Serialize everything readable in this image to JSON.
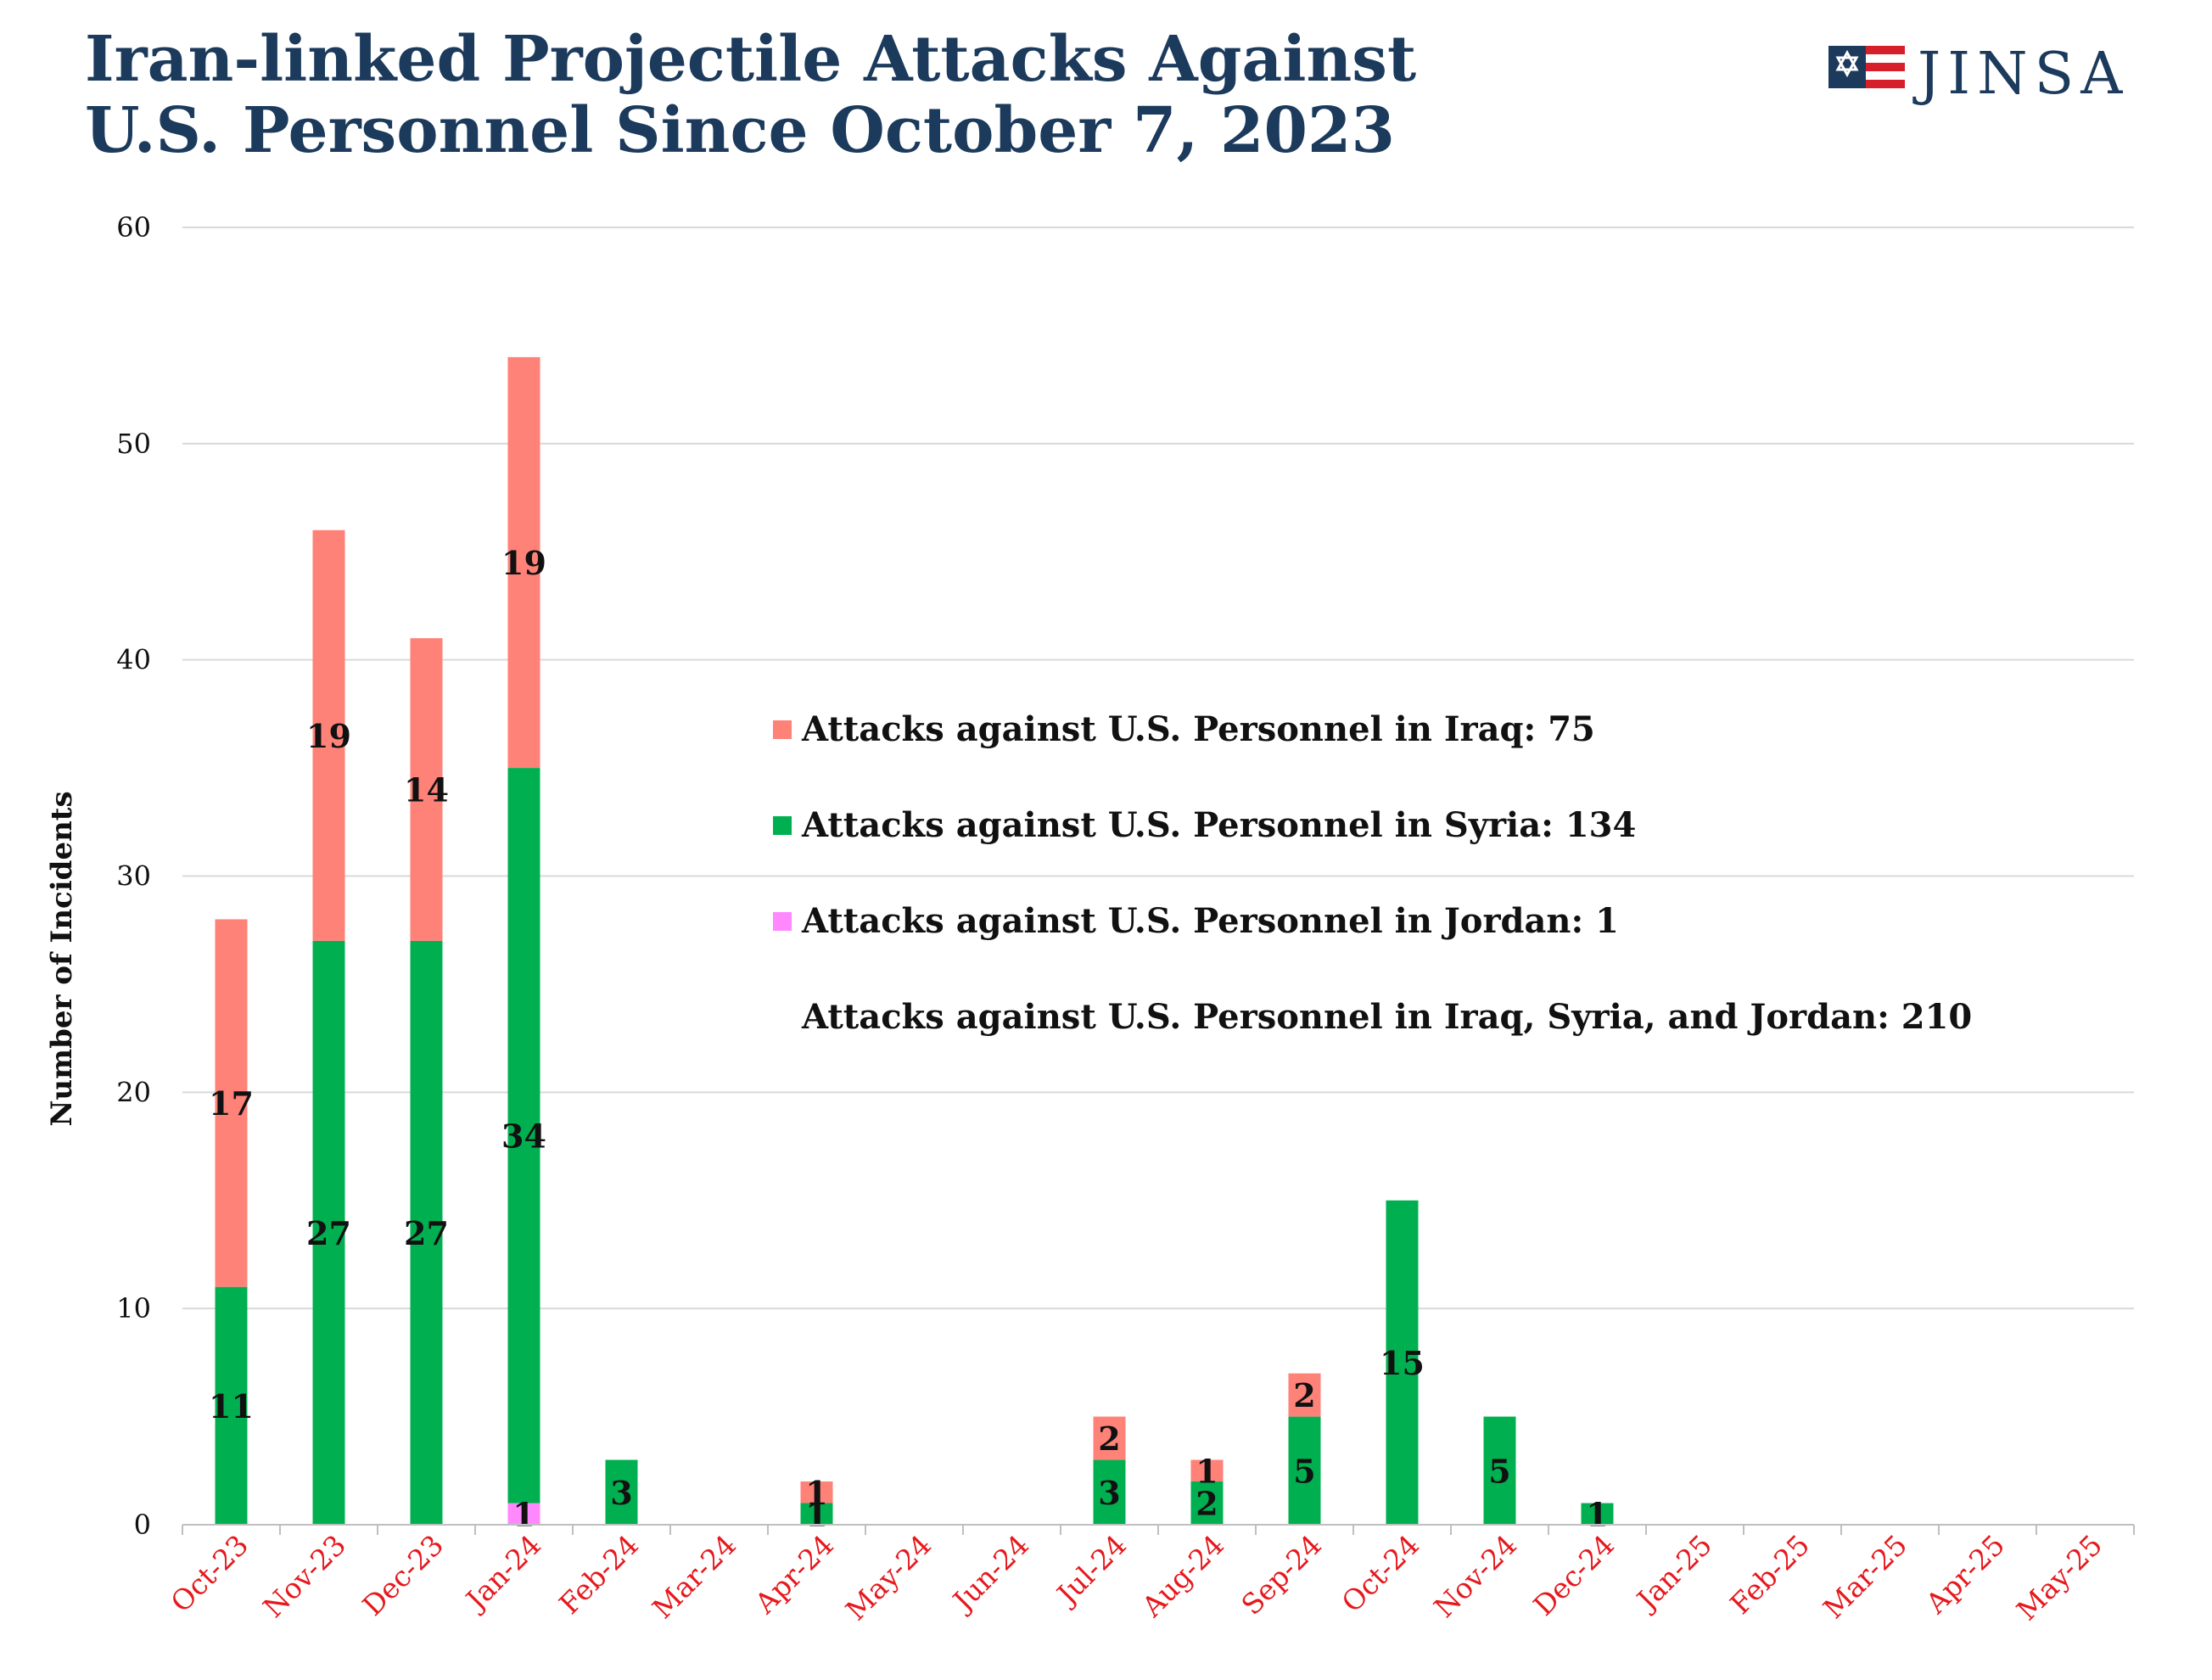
{
  "header": {
    "title_line1": "Iran-linked Projectile Attacks Against",
    "title_line2": "U.S. Personnel Since October 7, 2023",
    "logo_text": "JINSA"
  },
  "colors": {
    "title": "#1b3a5c",
    "iraq": "#fe8278",
    "syria": "#00b050",
    "jordan": "#ff88ff",
    "x_tick": "#e6191e",
    "grid": "#d9d9d9"
  },
  "chart_data": {
    "type": "bar",
    "stacked": true,
    "title": "Iran-linked Projectile Attacks Against U.S. Personnel Since October 7, 2023",
    "xlabel": "",
    "ylabel": "Number of Incidents",
    "ylim": [
      0,
      60
    ],
    "yticks": [
      0,
      10,
      20,
      30,
      40,
      50,
      60
    ],
    "grid": true,
    "legend_position": "center-right",
    "categories": [
      "Oct-23",
      "Nov-23",
      "Dec-23",
      "Jan-24",
      "Feb-24",
      "Mar-24",
      "Apr-24",
      "May-24",
      "Jun-24",
      "Jul-24",
      "Aug-24",
      "Sep-24",
      "Oct-24",
      "Nov-24",
      "Dec-24",
      "Jan-25",
      "Feb-25",
      "Mar-25",
      "Apr-25",
      "May-25"
    ],
    "series": [
      {
        "key": "jordan",
        "name": "Attacks against U.S. Personnel in Jordan: 1",
        "color": "#ff88ff",
        "values": [
          0,
          0,
          0,
          1,
          0,
          0,
          0,
          0,
          0,
          0,
          0,
          0,
          0,
          0,
          0,
          0,
          0,
          0,
          0,
          0
        ]
      },
      {
        "key": "syria",
        "name": "Attacks against U.S. Personnel in Syria: 134",
        "color": "#00b050",
        "values": [
          11,
          27,
          27,
          34,
          3,
          0,
          1,
          0,
          0,
          3,
          2,
          5,
          15,
          5,
          1,
          0,
          0,
          0,
          0,
          0
        ]
      },
      {
        "key": "iraq",
        "name": "Attacks against U.S. Personnel in Iraq: 75",
        "color": "#fe8278",
        "values": [
          17,
          19,
          14,
          19,
          0,
          0,
          1,
          0,
          0,
          2,
          1,
          2,
          0,
          0,
          0,
          0,
          0,
          0,
          0,
          0
        ]
      }
    ],
    "legend": [
      {
        "label": "Attacks against U.S. Personnel in Iraq: 75",
        "color": "#fe8278"
      },
      {
        "label": "Attacks against U.S. Personnel in Syria: 134",
        "color": "#00b050"
      },
      {
        "label": "Attacks against U.S. Personnel in Jordan: 1",
        "color": "#ff88ff"
      },
      {
        "label": "Attacks against U.S. Personnel in Iraq, Syria, and Jordan: 210",
        "color": ""
      }
    ]
  }
}
